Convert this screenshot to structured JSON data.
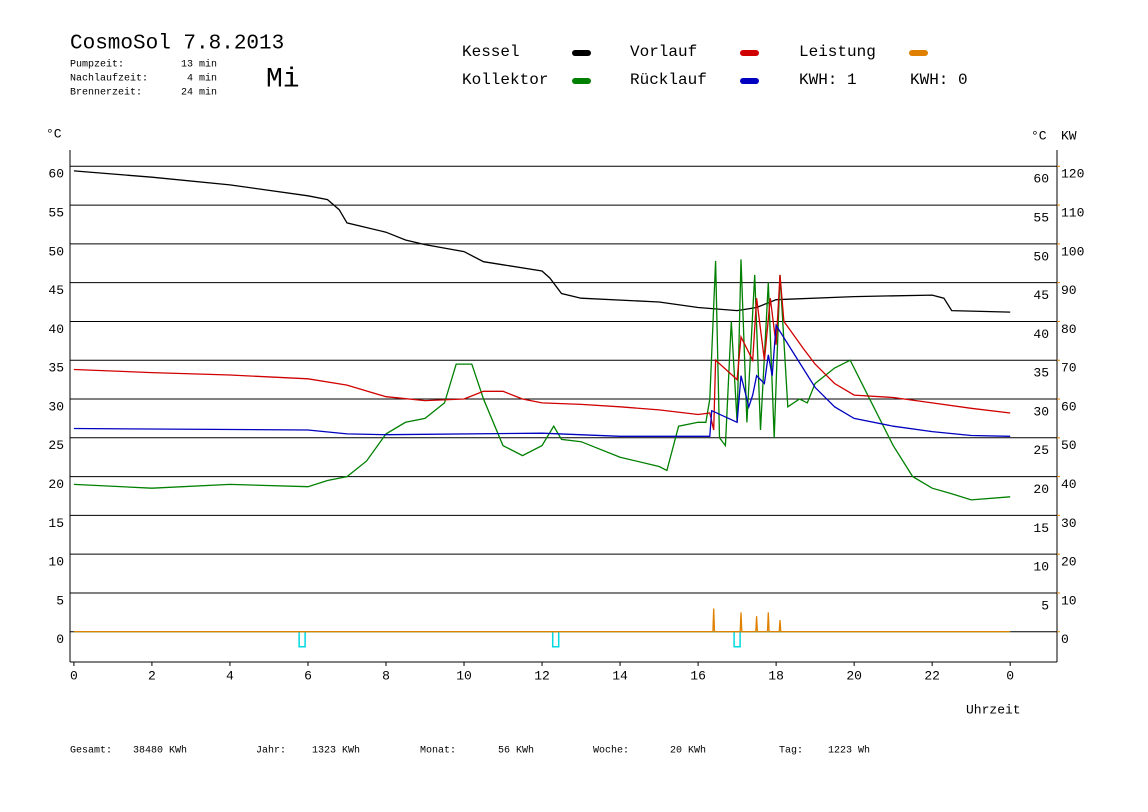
{
  "chart_data": {
    "type": "line",
    "title": "CosmoSol 7.8.2013",
    "weekday": "Mi",
    "weekday_color": "#0000c0",
    "stats": [
      {
        "label": "Pumpzeit:",
        "value": "13 min"
      },
      {
        "label": "Nachlaufzeit:",
        "value": "4 min"
      },
      {
        "label": "Brennerzeit:",
        "value": "24 min"
      }
    ],
    "kwh_labels": [
      {
        "text": "KWH: 1",
        "color": "#e08000"
      },
      {
        "text": "KWH: 0",
        "color": "#800080"
      }
    ],
    "y_label": "°C",
    "y2_labels": [
      {
        "text": "°C",
        "color": "#000000"
      },
      {
        "text": "KW",
        "color": "#e08000"
      }
    ],
    "x_label": "Uhrzeit",
    "xlim": [
      -0.1,
      25.2
    ],
    "xticks": [
      0,
      2,
      4,
      6,
      8,
      10,
      12,
      14,
      16,
      18,
      20,
      22,
      {
        "value": 24,
        "label": "0"
      }
    ],
    "ylim": [
      -3.9,
      62.1
    ],
    "yticks": [
      0,
      5,
      10,
      15,
      20,
      25,
      30,
      35,
      40,
      45,
      50,
      55,
      60
    ],
    "y2lim": [
      -7.8,
      124.2
    ],
    "y2ticks": [
      0,
      10,
      20,
      30,
      40,
      50,
      60,
      70,
      80,
      90,
      100,
      110,
      120
    ],
    "y2_color": "#e08000",
    "grid": true,
    "series": [
      {
        "name": "Kessel",
        "color": "#000000",
        "x": [
          0,
          2,
          4,
          6,
          6.5,
          6.8,
          7,
          8,
          8.5,
          9,
          10,
          10.5,
          11,
          12,
          12.2,
          12.5,
          13,
          15,
          16,
          17,
          17.5,
          18,
          20,
          22,
          22.3,
          22.5,
          24
        ],
        "values": [
          59.4,
          58.6,
          57.6,
          56.2,
          55.7,
          54.4,
          52.7,
          51.5,
          50.5,
          49.9,
          49.0,
          47.7,
          47.3,
          46.5,
          45.6,
          43.6,
          43.0,
          42.5,
          41.8,
          41.4,
          41.8,
          42.8,
          43.2,
          43.4,
          43.0,
          41.4,
          41.2
        ]
      },
      {
        "name": "Kollektor",
        "color": "#008000",
        "x": [
          0,
          2,
          4,
          6,
          6.5,
          7,
          7.5,
          8,
          8.5,
          9,
          9.5,
          9.8,
          10.2,
          10.5,
          11,
          11.5,
          12,
          12.3,
          12.5,
          13,
          14,
          15,
          15.2,
          15.5,
          16,
          16.2,
          16.3,
          16.45,
          16.55,
          16.7,
          16.85,
          17.0,
          17.1,
          17.25,
          17.45,
          17.6,
          17.8,
          17.95,
          18.1,
          18.3,
          18.6,
          18.8,
          19,
          19.5,
          19.9,
          20.3,
          21,
          21.5,
          22,
          22.5,
          23,
          24
        ],
        "values": [
          19.0,
          18.5,
          19.0,
          18.7,
          19.5,
          20.0,
          22.0,
          25.5,
          27.0,
          27.5,
          29.5,
          34.5,
          34.5,
          30.0,
          24.0,
          22.7,
          24.0,
          26.5,
          24.8,
          24.5,
          22.5,
          21.3,
          20.8,
          26.5,
          27.0,
          27.0,
          30.0,
          47.8,
          25.0,
          24.0,
          40.0,
          27.0,
          48.0,
          27.0,
          46.0,
          26.0,
          45.0,
          25.0,
          46.0,
          29.0,
          30.0,
          29.5,
          32.0,
          34.0,
          35.0,
          31.0,
          24.0,
          20.0,
          18.5,
          17.8,
          17.0,
          17.4
        ]
      },
      {
        "name": "Vorlauf",
        "color": "#d00000",
        "x": [
          0,
          2,
          4,
          6,
          7,
          8,
          9,
          10,
          10.5,
          11,
          11.5,
          12,
          13,
          14,
          15,
          16,
          16.3,
          16.4,
          16.45,
          17,
          17.1,
          17.4,
          17.5,
          17.7,
          17.85,
          18.0,
          18.1,
          18.2,
          18.7,
          19,
          19.5,
          20,
          21,
          22,
          23,
          24
        ],
        "values": [
          33.8,
          33.4,
          33.1,
          32.6,
          31.8,
          30.3,
          29.8,
          30.0,
          31.0,
          31.0,
          30.0,
          29.5,
          29.3,
          29.0,
          28.6,
          28.0,
          28.2,
          26.0,
          35.0,
          32.5,
          38.0,
          35.0,
          43.0,
          35.0,
          43.0,
          37.0,
          46.0,
          40.0,
          36.5,
          34.5,
          32.0,
          30.5,
          30.2,
          29.5,
          28.8,
          28.2
        ]
      },
      {
        "name": "Rücklauf",
        "color": "#0000c0",
        "x": [
          0,
          6,
          7,
          8,
          12,
          14,
          16,
          16.3,
          16.35,
          17,
          17.1,
          17.3,
          17.4,
          17.5,
          17.7,
          17.8,
          17.9,
          18.0,
          18.5,
          19,
          19.5,
          20,
          21,
          22,
          23,
          24
        ],
        "values": [
          26.2,
          26.0,
          25.5,
          25.4,
          25.6,
          25.2,
          25.2,
          25.2,
          28.5,
          27.0,
          33.0,
          29.0,
          30.5,
          33.0,
          32.0,
          35.7,
          33.0,
          39.5,
          35.5,
          31.5,
          29.0,
          27.5,
          26.5,
          25.8,
          25.3,
          25.2
        ]
      },
      {
        "name": "Leistung",
        "color": "#e08000",
        "axis": "y2",
        "x": [
          0,
          16.38,
          16.4,
          16.42,
          17.08,
          17.1,
          17.12,
          17.48,
          17.5,
          17.52,
          17.78,
          17.8,
          17.82,
          18.08,
          18.1,
          18.12,
          24
        ],
        "values": [
          0,
          0,
          6,
          0,
          0,
          5,
          0,
          0,
          4,
          0,
          0,
          5,
          0,
          0,
          3,
          0,
          0
        ]
      }
    ],
    "pump_markers": {
      "color": "#00d8e0",
      "x": [
        5.85,
        12.35,
        17.0
      ]
    },
    "totals": [
      {
        "label": "Gesamt:",
        "value": "38480 KWh"
      },
      {
        "label": "Jahr:",
        "value": "1323 KWh"
      },
      {
        "label": "Monat:",
        "value": "56 KWh"
      },
      {
        "label": "Woche:",
        "value": "20 KWh"
      },
      {
        "label": "Tag:",
        "value": "1223 Wh"
      }
    ]
  }
}
